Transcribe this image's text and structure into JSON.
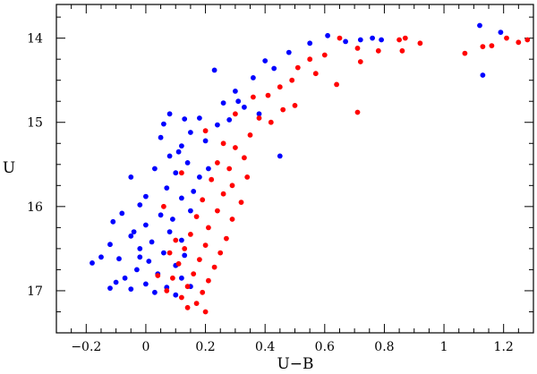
{
  "chart_data": {
    "type": "scatter",
    "xlabel": "U−B",
    "ylabel": "U",
    "xlim": [
      -0.3,
      1.3
    ],
    "ylim": [
      17.5,
      13.6
    ],
    "y_inverted": true,
    "grid": false,
    "x_ticks": [
      -0.2,
      0,
      0.2,
      0.4,
      0.6,
      0.8,
      1.0,
      1.2
    ],
    "x_tick_labels": [
      "−0.2",
      "0",
      "0.2",
      "0.4",
      "0.6",
      "0.8",
      "1",
      "1.2"
    ],
    "y_ticks": [
      14,
      15,
      16,
      17
    ],
    "y_tick_labels": [
      "14",
      "15",
      "16",
      "17"
    ],
    "series": [
      {
        "color": "#0000ff",
        "points": [
          [
            0.61,
            13.97
          ],
          [
            0.67,
            14.04
          ],
          [
            0.72,
            14.02
          ],
          [
            0.76,
            14.0
          ],
          [
            0.79,
            14.02
          ],
          [
            1.12,
            13.85
          ],
          [
            1.19,
            13.93
          ],
          [
            1.13,
            14.44
          ],
          [
            0.55,
            14.06
          ],
          [
            0.48,
            14.17
          ],
          [
            0.4,
            14.27
          ],
          [
            0.43,
            14.36
          ],
          [
            0.36,
            14.47
          ],
          [
            0.3,
            14.63
          ],
          [
            0.23,
            14.38
          ],
          [
            0.31,
            14.75
          ],
          [
            0.26,
            14.77
          ],
          [
            0.33,
            14.82
          ],
          [
            0.38,
            14.9
          ],
          [
            0.45,
            15.4
          ],
          [
            0.28,
            14.97
          ],
          [
            0.24,
            15.03
          ],
          [
            0.18,
            14.95
          ],
          [
            0.13,
            14.96
          ],
          [
            0.08,
            14.9
          ],
          [
            0.15,
            15.12
          ],
          [
            0.05,
            15.18
          ],
          [
            0.12,
            15.28
          ],
          [
            0.2,
            15.22
          ],
          [
            0.08,
            15.4
          ],
          [
            0.14,
            15.48
          ],
          [
            0.03,
            15.55
          ],
          [
            0.1,
            15.6
          ],
          [
            0.18,
            15.65
          ],
          [
            -0.05,
            15.65
          ],
          [
            0.07,
            15.78
          ],
          [
            0.0,
            15.88
          ],
          [
            -0.02,
            15.98
          ],
          [
            0.12,
            15.9
          ],
          [
            -0.08,
            16.08
          ],
          [
            0.05,
            16.1
          ],
          [
            0.15,
            16.05
          ],
          [
            -0.11,
            16.18
          ],
          [
            0.0,
            16.22
          ],
          [
            0.08,
            16.3
          ],
          [
            -0.05,
            16.35
          ],
          [
            0.12,
            16.4
          ],
          [
            -0.12,
            16.45
          ],
          [
            -0.02,
            16.5
          ],
          [
            0.06,
            16.55
          ],
          [
            -0.15,
            16.6
          ],
          [
            -0.09,
            16.62
          ],
          [
            0.01,
            16.65
          ],
          [
            0.1,
            16.7
          ],
          [
            -0.03,
            16.75
          ],
          [
            -0.18,
            16.67
          ],
          [
            0.04,
            16.8
          ],
          [
            -0.07,
            16.85
          ],
          [
            0.12,
            16.85
          ],
          [
            -0.1,
            16.9
          ],
          [
            0.0,
            16.92
          ],
          [
            -0.12,
            16.97
          ],
          [
            -0.05,
            16.98
          ],
          [
            0.07,
            16.96
          ],
          [
            0.03,
            17.02
          ],
          [
            0.15,
            16.95
          ],
          [
            0.1,
            17.05
          ],
          [
            -0.02,
            16.6
          ],
          [
            0.02,
            16.42
          ],
          [
            0.09,
            16.15
          ],
          [
            0.16,
            15.82
          ],
          [
            0.21,
            15.55
          ],
          [
            0.11,
            15.35
          ],
          [
            0.06,
            15.02
          ],
          [
            -0.04,
            16.3
          ],
          [
            0.13,
            16.58
          ]
        ]
      },
      {
        "color": "#ff0000",
        "points": [
          [
            0.65,
            14.0
          ],
          [
            0.71,
            14.12
          ],
          [
            0.78,
            14.15
          ],
          [
            0.85,
            14.02
          ],
          [
            0.87,
            14.0
          ],
          [
            0.92,
            14.06
          ],
          [
            0.86,
            14.15
          ],
          [
            0.72,
            14.28
          ],
          [
            1.07,
            14.18
          ],
          [
            1.13,
            14.1
          ],
          [
            1.21,
            14.0
          ],
          [
            1.25,
            14.05
          ],
          [
            1.28,
            14.02
          ],
          [
            1.16,
            14.09
          ],
          [
            0.6,
            14.2
          ],
          [
            0.55,
            14.25
          ],
          [
            0.51,
            14.35
          ],
          [
            0.57,
            14.42
          ],
          [
            0.64,
            14.55
          ],
          [
            0.49,
            14.5
          ],
          [
            0.45,
            14.58
          ],
          [
            0.41,
            14.68
          ],
          [
            0.5,
            14.8
          ],
          [
            0.46,
            14.85
          ],
          [
            0.38,
            14.95
          ],
          [
            0.42,
            15.0
          ],
          [
            0.71,
            14.88
          ],
          [
            0.35,
            15.15
          ],
          [
            0.3,
            15.3
          ],
          [
            0.26,
            15.25
          ],
          [
            0.33,
            15.42
          ],
          [
            0.28,
            15.55
          ],
          [
            0.24,
            15.48
          ],
          [
            0.34,
            15.65
          ],
          [
            0.29,
            15.75
          ],
          [
            0.22,
            15.68
          ],
          [
            0.26,
            15.85
          ],
          [
            0.32,
            15.95
          ],
          [
            0.19,
            15.92
          ],
          [
            0.24,
            16.05
          ],
          [
            0.29,
            16.15
          ],
          [
            0.17,
            16.12
          ],
          [
            0.21,
            16.25
          ],
          [
            0.27,
            16.38
          ],
          [
            0.15,
            16.33
          ],
          [
            0.2,
            16.46
          ],
          [
            0.25,
            16.55
          ],
          [
            0.13,
            16.5
          ],
          [
            0.18,
            16.63
          ],
          [
            0.23,
            16.72
          ],
          [
            0.11,
            16.68
          ],
          [
            0.16,
            16.8
          ],
          [
            0.21,
            16.88
          ],
          [
            0.09,
            16.85
          ],
          [
            0.14,
            16.95
          ],
          [
            0.19,
            17.02
          ],
          [
            0.07,
            17.0
          ],
          [
            0.12,
            17.08
          ],
          [
            0.17,
            17.15
          ],
          [
            0.2,
            17.25
          ],
          [
            0.14,
            17.2
          ],
          [
            0.1,
            16.4
          ],
          [
            0.06,
            16.0
          ],
          [
            0.12,
            15.6
          ],
          [
            0.2,
            15.1
          ],
          [
            0.3,
            14.9
          ],
          [
            0.36,
            14.7
          ],
          [
            0.08,
            16.55
          ],
          [
            0.04,
            16.82
          ]
        ]
      }
    ]
  }
}
